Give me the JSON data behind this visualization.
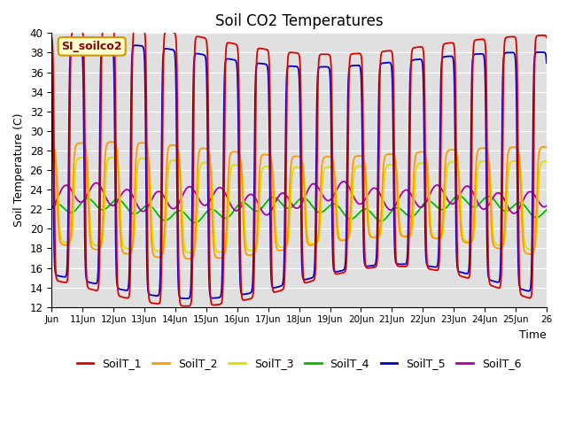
{
  "title": "Soil CO2 Temperatures",
  "xlabel": "Time",
  "ylabel": "Soil Temperature (C)",
  "ylim": [
    12,
    40
  ],
  "xlim_days": [
    10,
    26
  ],
  "annotation": "SI_soilco2",
  "bg_color": "#e0e0e0",
  "series": {
    "SoilT_1": {
      "color": "#dd0000",
      "lw": 1.3
    },
    "SoilT_2": {
      "color": "#ff9900",
      "lw": 1.3
    },
    "SoilT_3": {
      "color": "#dddd00",
      "lw": 1.3
    },
    "SoilT_4": {
      "color": "#00bb00",
      "lw": 1.3
    },
    "SoilT_5": {
      "color": "#0000cc",
      "lw": 1.3
    },
    "SoilT_6": {
      "color": "#aa00aa",
      "lw": 1.3
    }
  },
  "xtick_labels": [
    "Jun",
    "11Jun",
    "12Jun",
    "13Jun",
    "14Jun",
    "15Jun",
    "16Jun",
    "17Jun",
    "18Jun",
    "19Jun",
    "20Jun",
    "21Jun",
    "22Jun",
    "23Jun",
    "24Jun",
    "25Jun",
    "26"
  ],
  "xtick_positions": [
    10,
    11,
    12,
    13,
    14,
    15,
    16,
    17,
    18,
    19,
    20,
    21,
    22,
    23,
    24,
    25,
    26
  ]
}
